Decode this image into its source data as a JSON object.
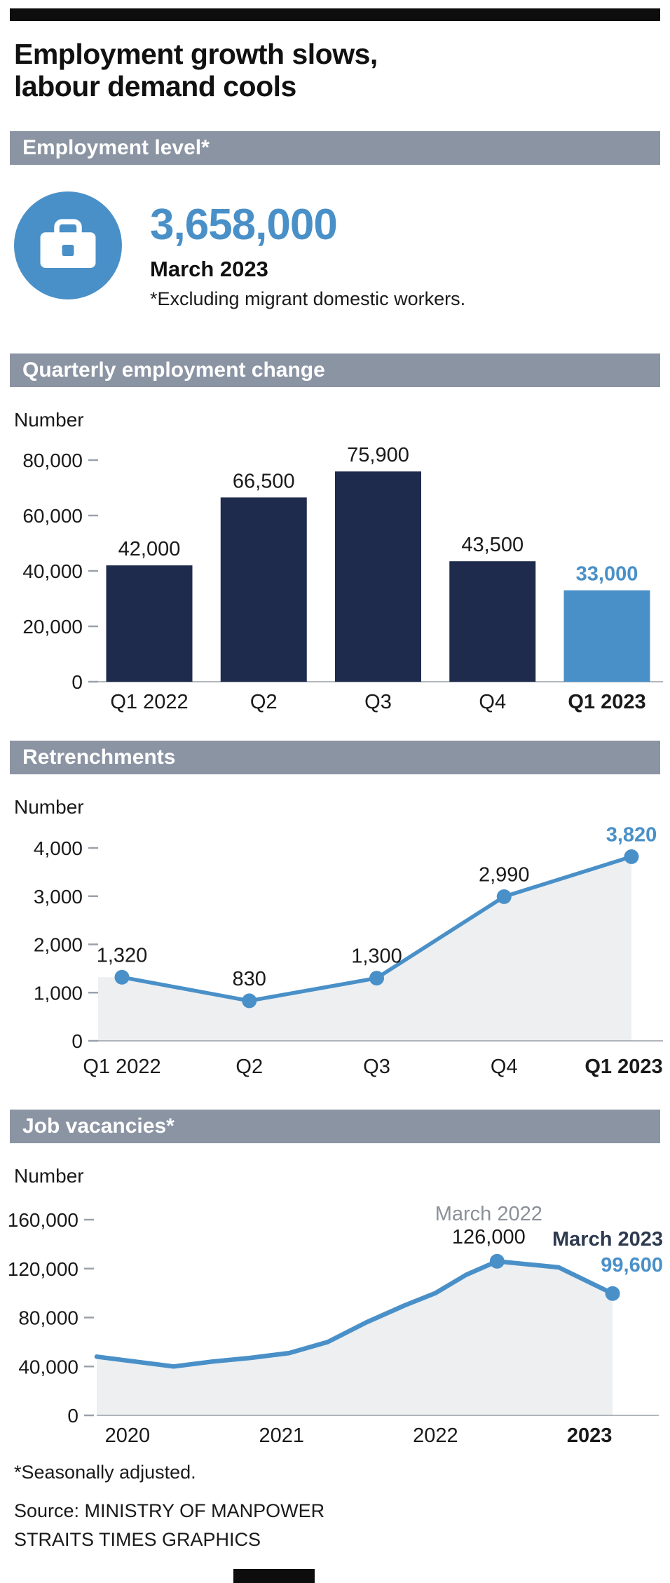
{
  "page": {
    "title_line1": "Employment growth slows,",
    "title_line2": "labour demand cools"
  },
  "colors": {
    "navy": "#1f2b4d",
    "blue": "#4a90c8",
    "header_bg": "#8b94a3",
    "area_fill": "#edeff1",
    "gray_label": "#8b9099"
  },
  "employment_level": {
    "header": "Employment level*",
    "icon": "briefcase-icon",
    "value": "3,658,000",
    "date": "March 2023",
    "note": "*Excluding migrant domestic workers."
  },
  "chart_data": [
    {
      "id": "quarterly-employment-change",
      "type": "bar",
      "title": "Quarterly employment change",
      "ylabel": "Number",
      "categories": [
        "Q1 2022",
        "Q2",
        "Q3",
        "Q4",
        "Q1 2023"
      ],
      "values": [
        42000,
        66500,
        75900,
        43500,
        33000
      ],
      "value_labels": [
        "42,000",
        "66,500",
        "75,900",
        "43,500",
        "33,000"
      ],
      "ylim": [
        0,
        80000
      ],
      "yticks": [
        0,
        20000,
        40000,
        60000,
        80000
      ],
      "ytick_labels": [
        "0",
        "20,000",
        "40,000",
        "60,000",
        "80,000"
      ],
      "highlight_index": 4,
      "grid": false,
      "legend": false
    },
    {
      "id": "retrenchments",
      "type": "line",
      "title": "Retrenchments",
      "ylabel": "Number",
      "categories": [
        "Q1 2022",
        "Q2",
        "Q3",
        "Q4",
        "Q1 2023"
      ],
      "values": [
        1320,
        830,
        1300,
        2990,
        3820
      ],
      "value_labels": [
        "1,320",
        "830",
        "1,300",
        "2,990",
        "3,820"
      ],
      "ylim": [
        0,
        4000
      ],
      "yticks": [
        0,
        1000,
        2000,
        3000,
        4000
      ],
      "ytick_labels": [
        "0",
        "1,000",
        "2,000",
        "3,000",
        "4,000"
      ],
      "highlight_index": 4,
      "grid": false,
      "legend": false
    },
    {
      "id": "job-vacancies",
      "type": "area",
      "title": "Job vacancies*",
      "ylabel": "Number",
      "x": [
        2019.8,
        2020.05,
        2020.3,
        2020.55,
        2020.8,
        2021.05,
        2021.3,
        2021.55,
        2021.8,
        2022.0,
        2022.2,
        2022.4,
        2022.8,
        2023.15
      ],
      "values": [
        48000,
        44000,
        40000,
        44000,
        47000,
        51000,
        60000,
        76000,
        90000,
        100000,
        115000,
        126000,
        121000,
        99600
      ],
      "xlim": [
        2019.8,
        2023.45
      ],
      "ylim": [
        0,
        160000
      ],
      "yticks": [
        0,
        40000,
        80000,
        120000,
        160000
      ],
      "ytick_labels": [
        "0",
        "40,000",
        "80,000",
        "120,000",
        "160,000"
      ],
      "xticks": [
        2020,
        2021,
        2022,
        2023
      ],
      "xtick_labels": [
        "2020",
        "2021",
        "2022",
        "2023"
      ],
      "annotations": [
        {
          "date_label": "March 2022",
          "value_label": "126,000",
          "x": 2022.4,
          "y": 126000,
          "style": "peak"
        },
        {
          "date_label": "March 2023",
          "value_label": "99,600",
          "x": 2023.15,
          "y": 99600,
          "style": "latest"
        }
      ],
      "grid": false,
      "legend": false
    }
  ],
  "footer": {
    "note": "*Seasonally adjusted.",
    "source": "Source: MINISTRY OF MANPOWER",
    "credit": "STRAITS TIMES GRAPHICS"
  }
}
